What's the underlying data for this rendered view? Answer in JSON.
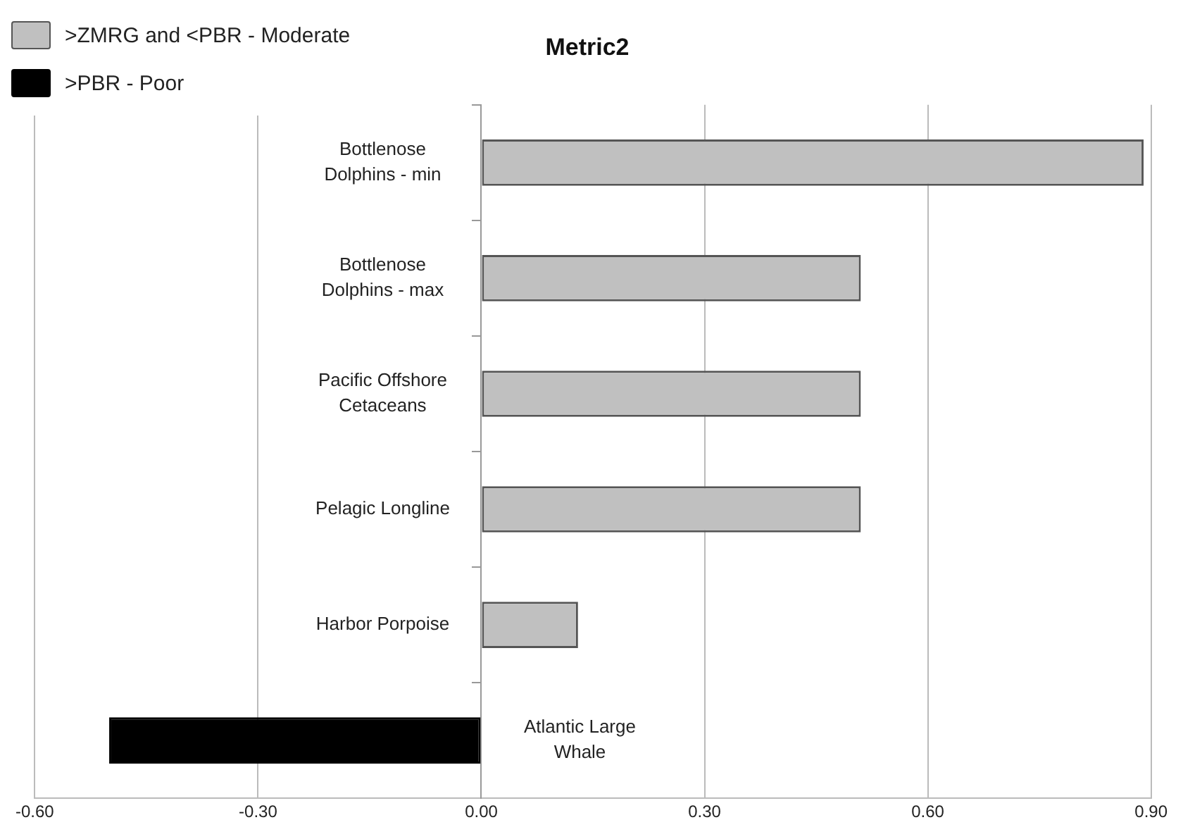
{
  "chart_data": {
    "type": "bar",
    "orientation": "horizontal",
    "title": "Metric2",
    "categories": [
      "Bottlenose Dolphins - min",
      "Bottlenose Dolphins - max",
      "Pacific Offshore Cetaceans",
      "Pelagic Longline",
      "Harbor Porpoise",
      "Atlantic Large Whale"
    ],
    "series": [
      {
        "name": ">ZMRG and <PBR - Moderate",
        "color": "#c0c0c0",
        "values": [
          0.89,
          0.51,
          0.51,
          0.51,
          0.13,
          null
        ]
      },
      {
        "name": ">PBR - Poor",
        "color": "#000000",
        "values": [
          null,
          null,
          null,
          null,
          null,
          -0.5
        ]
      }
    ],
    "xlim": [
      -0.6,
      0.9
    ],
    "xticks": [
      {
        "value": -0.6,
        "label": "-0.60"
      },
      {
        "value": -0.3,
        "label": "-0.30"
      },
      {
        "value": 0,
        "label": "0.00"
      },
      {
        "value": 0.3,
        "label": "0.30"
      },
      {
        "value": 0.6,
        "label": "0.60"
      },
      {
        "value": 0.9,
        "label": "0.90"
      }
    ],
    "grid": "x",
    "legend": "top left"
  }
}
